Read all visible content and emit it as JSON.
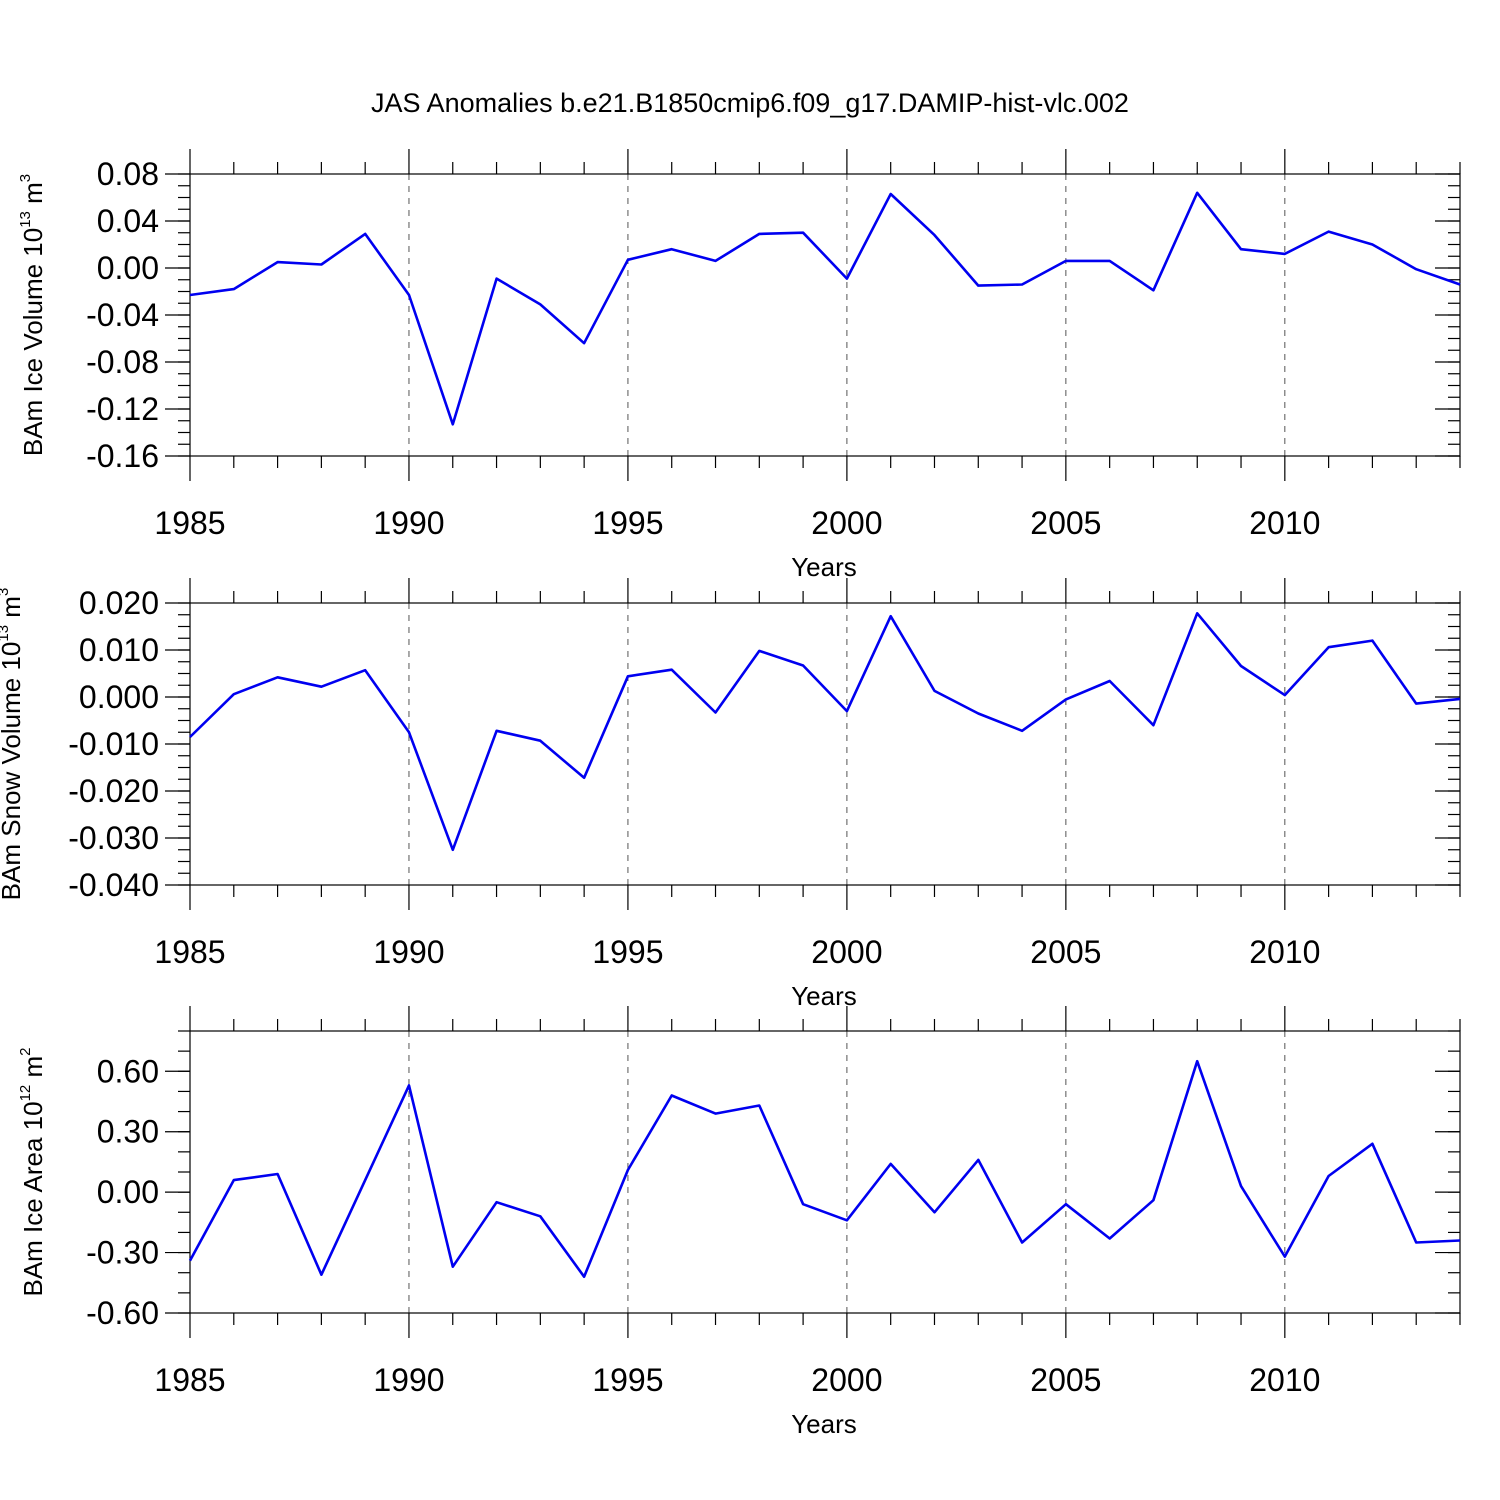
{
  "title": "JAS Anomalies b.e21.B1850cmip6.f09_g17.DAMIP-hist-vlc.002",
  "colors": {
    "line": "#0000f0",
    "axes": "#000000",
    "gridline": "#555555"
  },
  "chart_data": [
    {
      "type": "line",
      "xlabel": "Years",
      "ylabel": {
        "text": "BAm Ice Volume 10",
        "exp": "13",
        "unit": " m",
        "unit_exp": "3"
      },
      "xlim": [
        1985,
        2014
      ],
      "ylim": [
        -0.16,
        0.08
      ],
      "xticks": [
        1985,
        1990,
        1995,
        2000,
        2005,
        2010
      ],
      "yticks": [
        -0.16,
        -0.12,
        -0.08,
        -0.04,
        0.0,
        0.04,
        0.08
      ],
      "ytick_labels": [
        "-0.16",
        "-0.12",
        "-0.08",
        "-0.04",
        "0.00",
        "0.04",
        "0.08"
      ],
      "yminor_step": 0.01,
      "x": [
        1985,
        1986,
        1987,
        1988,
        1989,
        1990,
        1991,
        1992,
        1993,
        1994,
        1995,
        1996,
        1997,
        1998,
        1999,
        2000,
        2001,
        2002,
        2003,
        2004,
        2005,
        2006,
        2007,
        2008,
        2009,
        2010,
        2011,
        2012,
        2013,
        2014
      ],
      "values": [
        -0.023,
        -0.018,
        0.005,
        0.003,
        0.029,
        -0.023,
        -0.133,
        -0.009,
        -0.031,
        -0.064,
        0.007,
        0.016,
        0.006,
        0.029,
        0.03,
        -0.009,
        0.063,
        0.028,
        -0.015,
        -0.014,
        0.006,
        0.006,
        -0.019,
        0.064,
        0.016,
        0.012,
        0.031,
        0.02,
        -0.001,
        -0.014
      ]
    },
    {
      "type": "line",
      "xlabel": "Years",
      "ylabel": {
        "text": "BAm Snow Volume 10",
        "exp": "13",
        "unit": " m",
        "unit_exp": "3"
      },
      "xlim": [
        1985,
        2014
      ],
      "ylim": [
        -0.04,
        0.02
      ],
      "xticks": [
        1985,
        1990,
        1995,
        2000,
        2005,
        2010
      ],
      "yticks": [
        -0.04,
        -0.03,
        -0.02,
        -0.01,
        0.0,
        0.01,
        0.02
      ],
      "ytick_labels": [
        "-0.040",
        "-0.030",
        "-0.020",
        "-0.010",
        "0.000",
        "0.010",
        "0.020"
      ],
      "yminor_step": 0.0025,
      "x": [
        1985,
        1986,
        1987,
        1988,
        1989,
        1990,
        1991,
        1992,
        1993,
        1994,
        1995,
        1996,
        1997,
        1998,
        1999,
        2000,
        2001,
        2002,
        2003,
        2004,
        2005,
        2006,
        2007,
        2008,
        2009,
        2010,
        2011,
        2012,
        2013,
        2014
      ],
      "values": [
        -0.0085,
        0.0006,
        0.0042,
        0.0022,
        0.0057,
        -0.0075,
        -0.0325,
        -0.0072,
        -0.0093,
        -0.0172,
        0.0044,
        0.0058,
        -0.0033,
        0.0098,
        0.0067,
        -0.003,
        0.0172,
        0.0013,
        -0.0035,
        -0.0072,
        -0.0005,
        0.0034,
        -0.006,
        0.0178,
        0.0066,
        0.0004,
        0.0106,
        0.012,
        -0.0014,
        -0.0004
      ]
    },
    {
      "type": "line",
      "xlabel": "Years",
      "ylabel": {
        "text": "BAm Ice Area 10",
        "exp": "12",
        "unit": " m",
        "unit_exp": "2"
      },
      "xlim": [
        1985,
        2014
      ],
      "ylim": [
        -0.6,
        0.8
      ],
      "xticks": [
        1985,
        1990,
        1995,
        2000,
        2005,
        2010
      ],
      "yticks": [
        -0.6,
        -0.3,
        0.0,
        0.3,
        0.6
      ],
      "ytick_labels": [
        "-0.60",
        "-0.30",
        "0.00",
        "0.30",
        "0.60"
      ],
      "yminor_step": 0.1,
      "x": [
        1985,
        1986,
        1987,
        1988,
        1989,
        1990,
        1991,
        1992,
        1993,
        1994,
        1995,
        1996,
        1997,
        1998,
        1999,
        2000,
        2001,
        2002,
        2003,
        2004,
        2005,
        2006,
        2007,
        2008,
        2009,
        2010,
        2011,
        2012,
        2013,
        2014
      ],
      "values": [
        -0.34,
        0.06,
        0.09,
        -0.41,
        0.06,
        0.53,
        -0.37,
        -0.05,
        -0.12,
        -0.42,
        0.11,
        0.48,
        0.39,
        0.43,
        -0.06,
        -0.14,
        0.14,
        -0.1,
        0.16,
        -0.25,
        -0.06,
        -0.23,
        -0.04,
        0.65,
        0.03,
        -0.32,
        0.08,
        0.24,
        -0.25,
        -0.24
      ]
    }
  ]
}
